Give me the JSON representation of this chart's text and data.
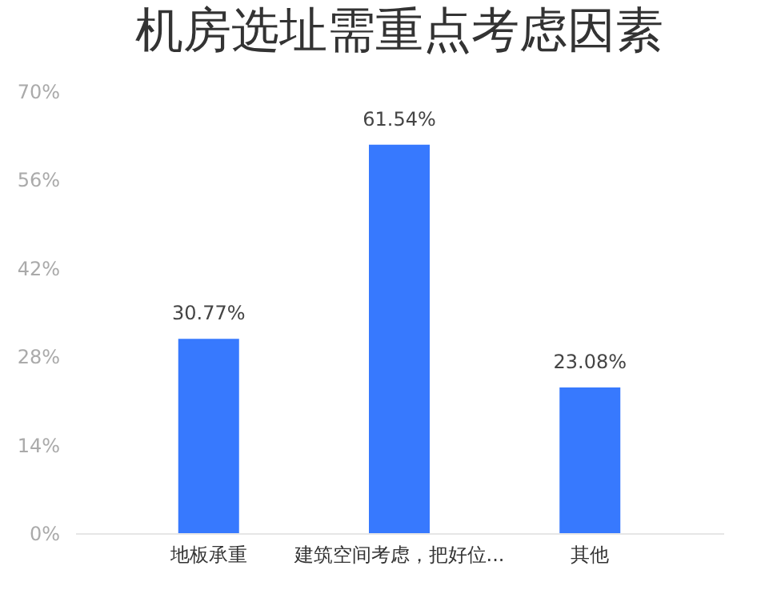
{
  "chart_data": {
    "type": "bar",
    "title": "机房选址需重点考虑因素",
    "categories": [
      "地板承重",
      "建筑空间考虑，把好位...",
      "其他"
    ],
    "values": [
      30.77,
      61.54,
      23.08
    ],
    "value_labels": [
      "30.77%",
      "61.54%",
      "23.08%"
    ],
    "color": "#3779fe",
    "ylim": [
      0,
      70
    ],
    "yticks": [
      {
        "value": 0,
        "label": "0%"
      },
      {
        "value": 14,
        "label": "14%"
      },
      {
        "value": 28,
        "label": "28%"
      },
      {
        "value": 42,
        "label": "42%"
      },
      {
        "value": 56,
        "label": "56%"
      },
      {
        "value": 70,
        "label": "70%"
      }
    ],
    "grid": false
  }
}
